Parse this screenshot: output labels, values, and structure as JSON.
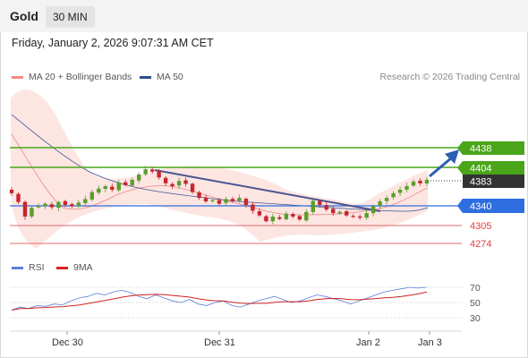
{
  "header": {
    "instrument": "Gold",
    "timeframe": "30 MIN"
  },
  "timestamp": "Friday, January 2, 2026 9:07:31 AM CET",
  "legend": {
    "items": [
      {
        "label": "MA 20 + Bollinger Bands",
        "color": "#f28b82"
      },
      {
        "label": "MA 50",
        "color": "#2d4f8a"
      }
    ],
    "credit": "Research © 2026 Trading Central"
  },
  "rsi_legend": {
    "items": [
      {
        "label": "RSI",
        "color": "#5b7fd6"
      },
      {
        "label": "9MA",
        "color": "#e02020"
      }
    ]
  },
  "price_labels": [
    {
      "value": "4438",
      "style": "resistance"
    },
    {
      "value": "4404",
      "style": "resistance"
    },
    {
      "value": "4383",
      "style": "current"
    },
    {
      "value": "4340",
      "style": "pivot"
    },
    {
      "value": "4305",
      "style": "support"
    },
    {
      "value": "4274",
      "style": "support"
    }
  ],
  "rsi_axis": [
    "70",
    "50",
    "30"
  ],
  "x_axis": [
    "Dec 30",
    "Dec 31",
    "Jan 2",
    "Jan 3"
  ],
  "colors": {
    "resistance": "#4aa519",
    "pivot": "#2f6ee0",
    "support": "#e36a6a",
    "current": "#333333",
    "candle_up": "#5a9e2a",
    "candle_down": "#c7262c",
    "band": "#fde2df",
    "trendline": "#4a5590",
    "arrow": "#2b5fb4"
  },
  "chart_data": {
    "type": "candlestick",
    "series": [
      {
        "name": "MA 20 + Bollinger Bands"
      },
      {
        "name": "MA 50"
      },
      {
        "name": "RSI"
      },
      {
        "name": "9MA"
      }
    ],
    "levels": {
      "resistance": [
        4438,
        4404
      ],
      "pivot": 4340,
      "support": [
        4305,
        4274
      ],
      "current": 4383
    },
    "price_path": [
      4360,
      4345,
      4320,
      4335,
      4338,
      4342,
      4336,
      4345,
      4340,
      4338,
      4344,
      4350,
      4362,
      4368,
      4372,
      4366,
      4378,
      4374,
      4383,
      4392,
      4401,
      4397,
      4387,
      4377,
      4372,
      4381,
      4376,
      4362,
      4352,
      4346,
      4348,
      4342,
      4350,
      4346,
      4352,
      4340,
      4330,
      4322,
      4312,
      4320,
      4316,
      4325,
      4320,
      4315,
      4328,
      4347,
      4340,
      4332,
      4326,
      4328,
      4322,
      4320,
      4318,
      4326,
      4338,
      4346,
      4352,
      4360,
      4366,
      4372,
      4380,
      4377,
      4383
    ],
    "rsi_range": [
      0,
      100
    ],
    "rsi_path": [
      40,
      44,
      42,
      46,
      45,
      48,
      47,
      52,
      56,
      58,
      62,
      60,
      64,
      66,
      63,
      58,
      55,
      60,
      56,
      52,
      50,
      54,
      48,
      46,
      50,
      52,
      46,
      44,
      48,
      52,
      55,
      58,
      54,
      50,
      52,
      56,
      60,
      58,
      55,
      52,
      48,
      52,
      56,
      60,
      64,
      66,
      68,
      70,
      69,
      70
    ]
  }
}
